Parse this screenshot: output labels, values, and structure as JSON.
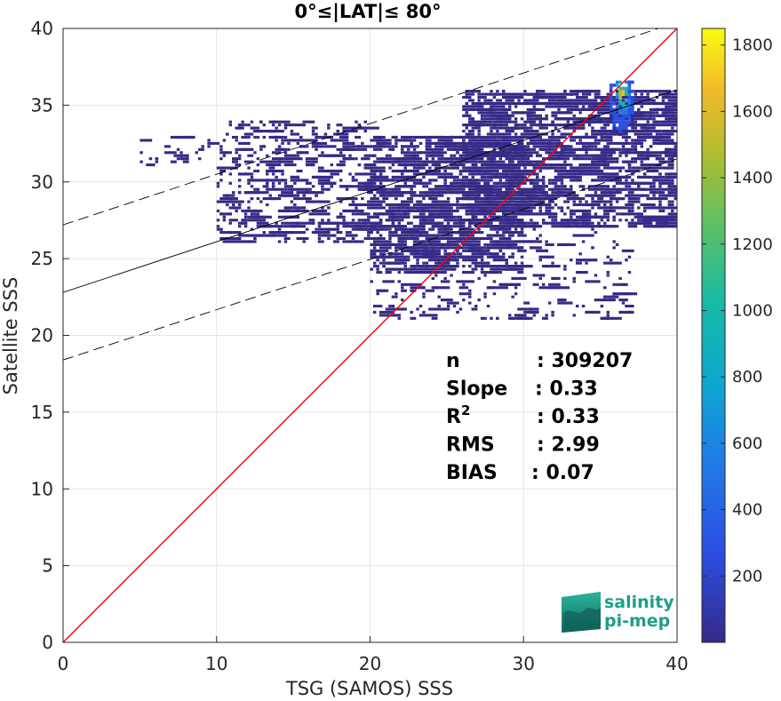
{
  "chart_data": {
    "type": "heatmap",
    "title": "0°≤|LAT|≤ 80°",
    "xlabel": "TSG (SAMOS) SSS",
    "ylabel": "Satellite SSS",
    "xlim": [
      0,
      40
    ],
    "ylim": [
      0,
      40
    ],
    "xticks": [
      "0",
      "10",
      "20",
      "30",
      "40"
    ],
    "yticks": [
      "0",
      "5",
      "10",
      "15",
      "20",
      "25",
      "30",
      "35",
      "40"
    ],
    "grid": true,
    "colorbar": {
      "range": [
        0,
        1850
      ],
      "ticks": [
        "200",
        "400",
        "600",
        "800",
        "1000",
        "1200",
        "1400",
        "1600",
        "1800"
      ],
      "colormap": "parula"
    },
    "identity_line": {
      "x": [
        0,
        40
      ],
      "y": [
        0,
        40
      ],
      "color": "#ff0000"
    },
    "regression_line": {
      "x": [
        0,
        40
      ],
      "y": [
        22.8,
        36.0
      ],
      "color": "#000000"
    },
    "confidence_upper": {
      "x": [
        0,
        40
      ],
      "y": [
        27.2,
        40.4
      ]
    },
    "confidence_lower": {
      "x": [
        0,
        40
      ],
      "y": [
        18.4,
        31.5
      ]
    },
    "density_cloud": {
      "core": {
        "x_center": 36.4,
        "y_center": 35.7,
        "peak_count": 1800
      },
      "regions": [
        {
          "x_range": [
            26,
            40
          ],
          "y_range": [
            27,
            36
          ],
          "count": 60
        },
        {
          "x_range": [
            20,
            30
          ],
          "y_range": [
            24,
            33
          ],
          "count": 25
        },
        {
          "x_range": [
            10,
            20
          ],
          "y_range": [
            26,
            34
          ],
          "count": 8
        },
        {
          "x_range": [
            5,
            10
          ],
          "y_range": [
            31,
            33
          ],
          "count": 3
        },
        {
          "x_range": [
            20,
            37
          ],
          "y_range": [
            21,
            27
          ],
          "count": 6
        }
      ]
    },
    "stats": [
      {
        "label": "n",
        "sep": ": ",
        "value": "309207"
      },
      {
        "label": "Slope",
        "sep": ": ",
        "value": "0.33"
      },
      {
        "label": "R",
        "sup": "2",
        "sep": ": ",
        "value": "0.33"
      },
      {
        "label": "RMS",
        "sep": ": ",
        "value": "2.99"
      },
      {
        "label": "BIAS",
        "sep": ": ",
        "value": "0.07"
      }
    ]
  },
  "logo": {
    "line1": "salinity",
    "line2": "pi-mep"
  }
}
